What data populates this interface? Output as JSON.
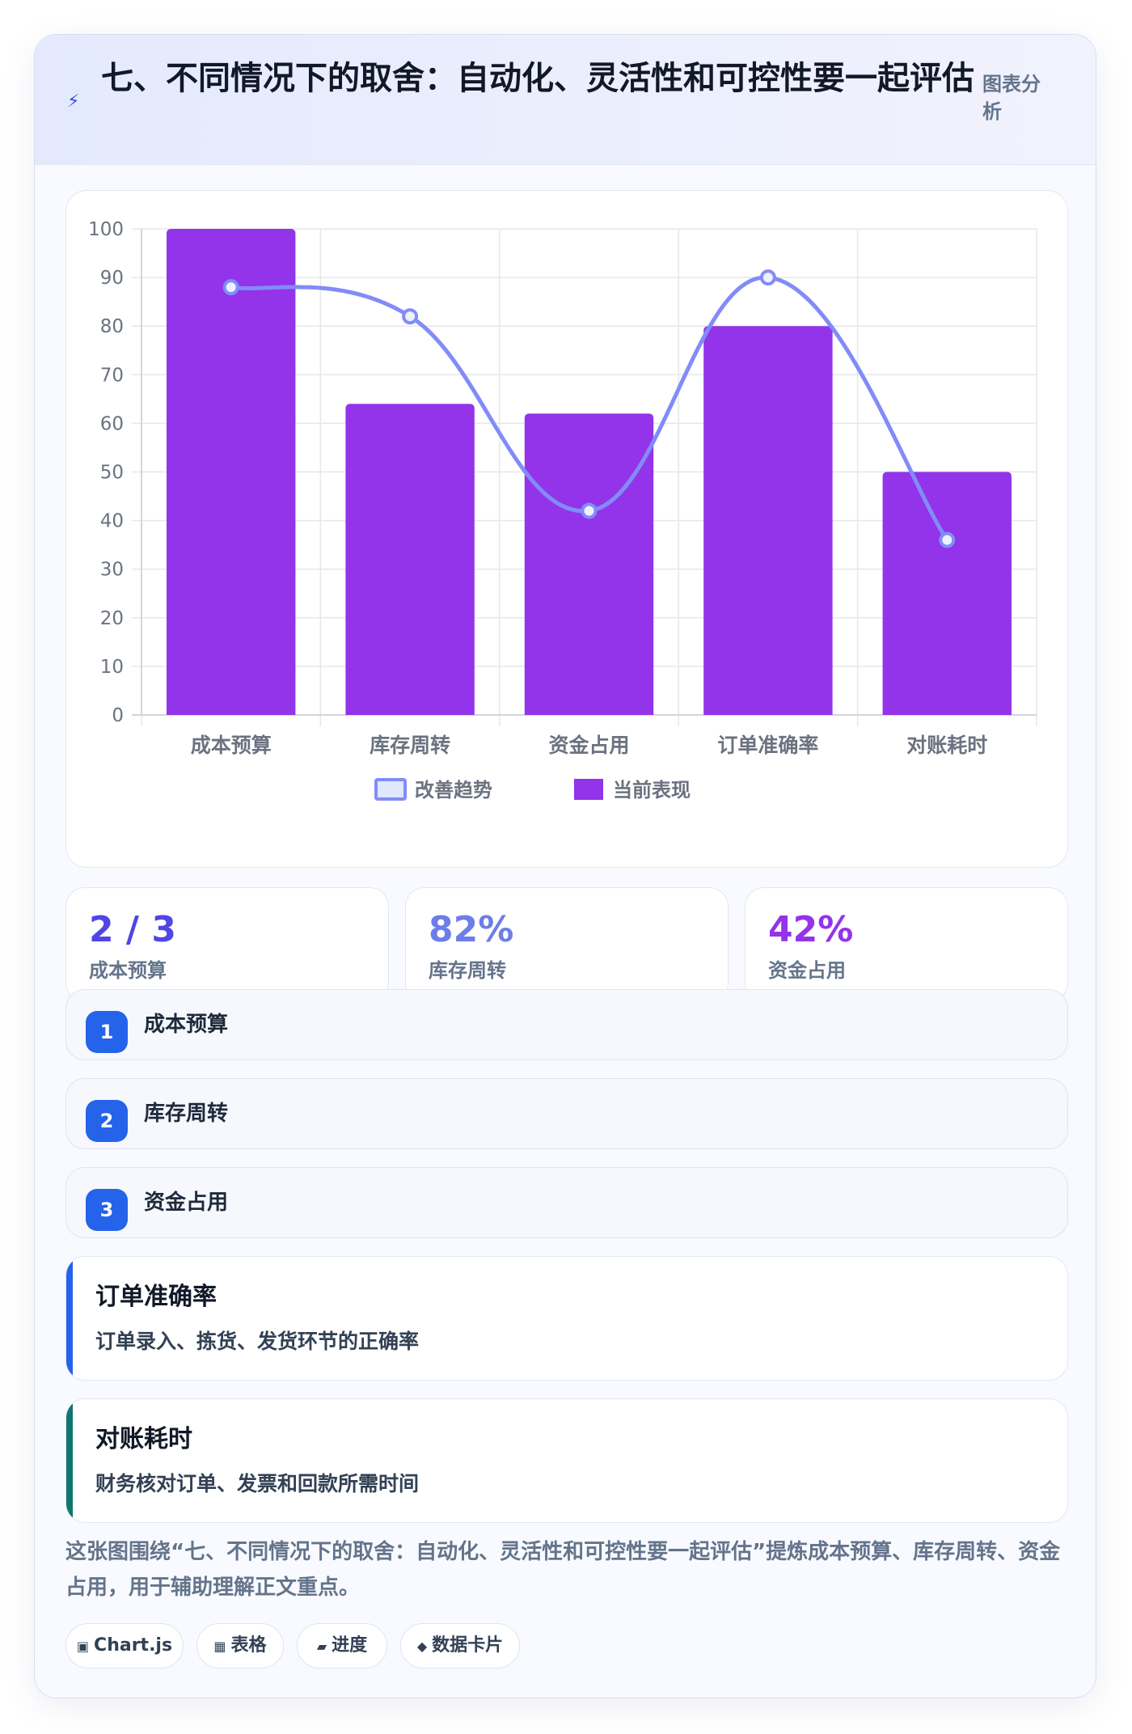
{
  "header": {
    "title": "七、不同情况下的取舍：自动化、灵活性和可控性要一起评估",
    "tag": "图表分析"
  },
  "chart_data": {
    "type": "bar",
    "categories": [
      "成本预算",
      "库存周转",
      "资金占用",
      "订单准确率",
      "对账耗时"
    ],
    "series": [
      {
        "name": "改善趋势",
        "type": "line",
        "values": [
          88,
          82,
          42,
          90,
          36
        ],
        "color": "#818cf8"
      },
      {
        "name": "当前表现",
        "type": "bar",
        "values": [
          100,
          64,
          62,
          80,
          50
        ],
        "color": "#9333ea"
      }
    ],
    "ylim": [
      0,
      100
    ],
    "yticks": [
      "0",
      "10",
      "20",
      "30",
      "40",
      "50",
      "60",
      "70",
      "80",
      "90",
      "100"
    ],
    "grid": true,
    "legend": "bottom"
  },
  "stats": [
    {
      "value": "2 / 3",
      "label": "成本预算",
      "color": "#4f46e5"
    },
    {
      "value": "82%",
      "label": "库存周转",
      "color": "#6d7ee8"
    },
    {
      "value": "42%",
      "label": "资金占用",
      "color": "#9333ea"
    }
  ],
  "steps": [
    {
      "num": "1",
      "label": "成本预算"
    },
    {
      "num": "2",
      "label": "库存周转"
    },
    {
      "num": "3",
      "label": "资金占用"
    }
  ],
  "notes": [
    {
      "title": "订单准确率",
      "desc": "订单录入、拣货、发货环节的正确率",
      "color": "#2563eb"
    },
    {
      "title": "对账耗时",
      "desc": "财务核对订单、发票和回款所需时间",
      "color": "#0f766e"
    }
  ],
  "caption": "这张图围绕“七、不同情况下的取舍：自动化、灵活性和可控性要一起评估”提炼成本预算、库存周转、资金占用，用于辅助理解正文重点。",
  "chips": [
    {
      "icon": "▣",
      "label": "Chart.js"
    },
    {
      "icon": "▦",
      "label": "表格"
    },
    {
      "icon": "▰",
      "label": "进度"
    },
    {
      "icon": "◆",
      "label": "数据卡片"
    }
  ]
}
